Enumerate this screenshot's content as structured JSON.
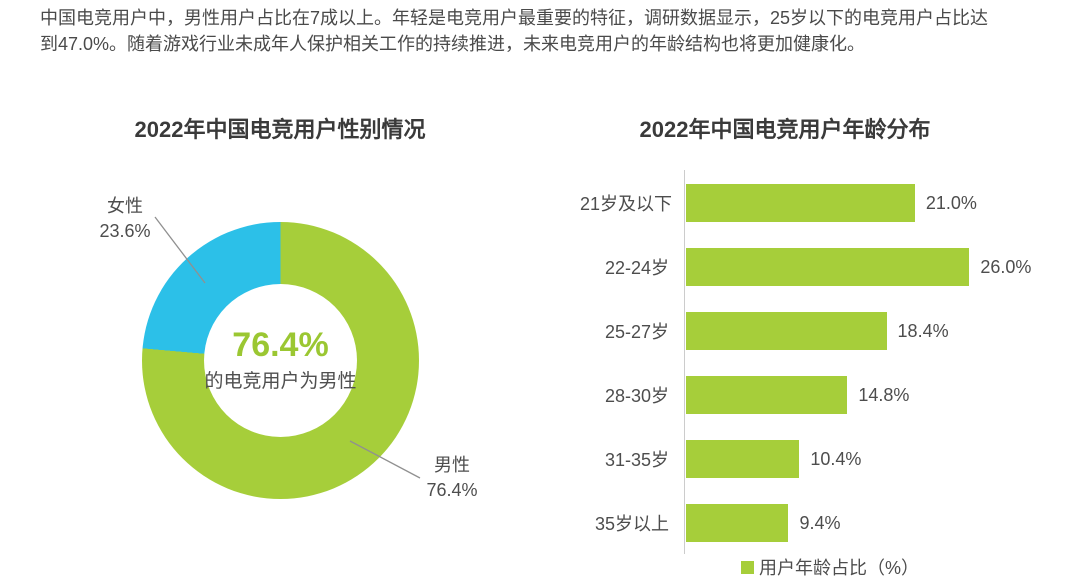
{
  "intro": {
    "line1": "中国电竞用户中，男性用户占比在7成以上。年轻是电竞用户最重要的特征，调研数据显示，25岁以下的电竞用户占比达",
    "line2": "到47.0%。随着游戏行业未成年人保护相关工作的持续推进，未来电竞用户的年龄结构也将更加健康化。"
  },
  "colors": {
    "green": "#a6ce3a",
    "blue": "#2cc0e8",
    "center_text_green": "#9bc732",
    "text_dark": "#4d4d4d",
    "title_gray": "#3a3a3a",
    "axis_gray": "#cccccc",
    "callout_line_gray": "#909090"
  },
  "chart_data": [
    {
      "type": "pie",
      "donut": true,
      "title": "2022年中国电竞用户性别情况",
      "slices": [
        {
          "label": "男性",
          "value": 76.4,
          "color": "#a6ce3a"
        },
        {
          "label": "女性",
          "value": 23.6,
          "color": "#2cc0e8"
        }
      ],
      "center_value": "76.4%",
      "center_caption": "的电竞用户为男性",
      "callouts": [
        {
          "label": "女性",
          "value_text": "23.6%"
        },
        {
          "label": "男性",
          "value_text": "76.4%"
        }
      ],
      "legend_position": "none"
    },
    {
      "type": "bar",
      "orientation": "horizontal",
      "title": "2022年中国电竞用户年龄分布",
      "categories": [
        "21岁及以下",
        "22-24岁",
        "25-27岁",
        "28-30岁",
        "31-35岁",
        "35岁以上"
      ],
      "values": [
        21.0,
        26.0,
        18.4,
        14.8,
        10.4,
        9.4
      ],
      "value_labels": [
        "21.0%",
        "26.0%",
        "18.4%",
        "14.8%",
        "10.4%",
        "9.4%"
      ],
      "bar_color": "#a6ce3a",
      "xlim": [
        0,
        30
      ],
      "grid": false,
      "value_label_position": "right-of-bar",
      "legend": "用户年龄占比（%）",
      "legend_position": "bottom"
    }
  ]
}
